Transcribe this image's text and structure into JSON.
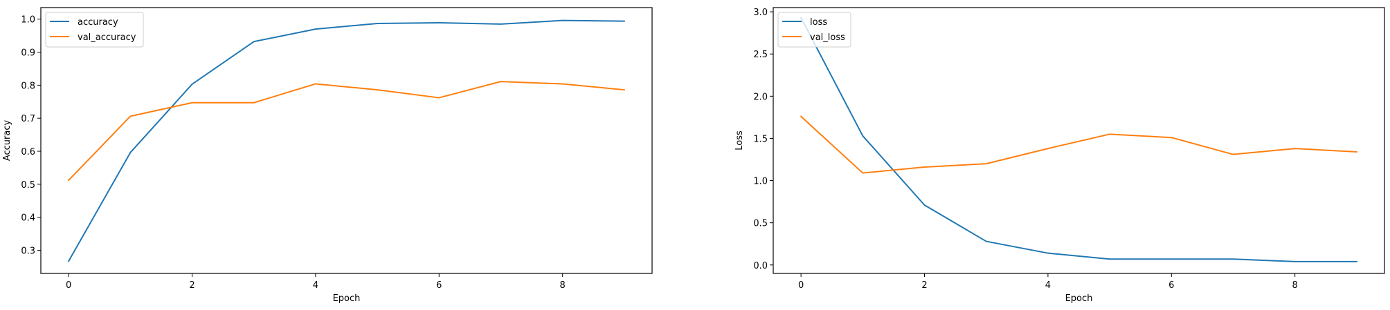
{
  "chart_data": [
    {
      "type": "line",
      "title": "",
      "xlabel": "Epoch",
      "ylabel": "Accuracy",
      "xlim": [
        -0.45,
        9.45
      ],
      "ylim": [
        0.23,
        1.035
      ],
      "xticks": [
        0,
        2,
        4,
        6,
        8
      ],
      "xtick_labels": [
        "0",
        "2",
        "4",
        "6",
        "8"
      ],
      "yticks": [
        0.3,
        0.4,
        0.5,
        0.6,
        0.7,
        0.8,
        0.9,
        1.0
      ],
      "ytick_labels": [
        "0.3",
        "0.4",
        "0.5",
        "0.6",
        "0.7",
        "0.8",
        "0.9",
        "1.0"
      ],
      "grid": false,
      "legend_position": "upper left",
      "x": [
        0,
        1,
        2,
        3,
        4,
        5,
        6,
        7,
        8,
        9
      ],
      "series": [
        {
          "name": "accuracy",
          "color": "#1f77b4",
          "values": [
            0.267,
            0.596,
            0.803,
            0.932,
            0.97,
            0.987,
            0.989,
            0.985,
            0.996,
            0.994
          ]
        },
        {
          "name": "val_accuracy",
          "color": "#ff7f0e",
          "values": [
            0.512,
            0.706,
            0.747,
            0.747,
            0.804,
            0.786,
            0.762,
            0.811,
            0.804,
            0.786
          ]
        }
      ]
    },
    {
      "type": "line",
      "title": "",
      "xlabel": "Epoch",
      "ylabel": "Loss",
      "xlim": [
        -0.45,
        9.45
      ],
      "ylim": [
        -0.1,
        3.05
      ],
      "xticks": [
        0,
        2,
        4,
        6,
        8
      ],
      "xtick_labels": [
        "0",
        "2",
        "4",
        "6",
        "8"
      ],
      "yticks": [
        0.0,
        0.5,
        1.0,
        1.5,
        2.0,
        2.5,
        3.0
      ],
      "ytick_labels": [
        "0.0",
        "0.5",
        "1.0",
        "1.5",
        "2.0",
        "2.5",
        "3.0"
      ],
      "grid": false,
      "legend_position": "upper left",
      "x": [
        0,
        1,
        2,
        3,
        4,
        5,
        6,
        7,
        8,
        9
      ],
      "series": [
        {
          "name": "loss",
          "color": "#1f77b4",
          "values": [
            2.93,
            1.53,
            0.71,
            0.28,
            0.14,
            0.07,
            0.07,
            0.07,
            0.04,
            0.04
          ]
        },
        {
          "name": "val_loss",
          "color": "#ff7f0e",
          "values": [
            1.76,
            1.09,
            1.16,
            1.2,
            1.38,
            1.55,
            1.51,
            1.31,
            1.38,
            1.34
          ]
        }
      ]
    }
  ]
}
